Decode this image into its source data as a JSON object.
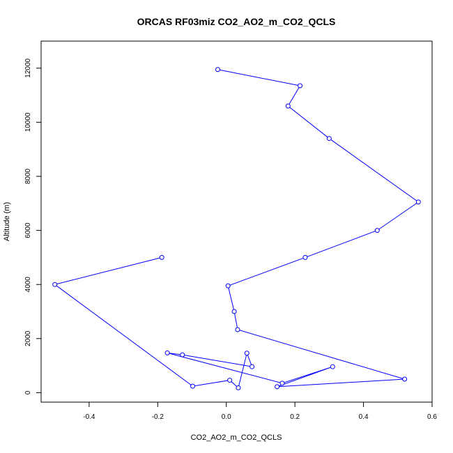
{
  "chart_data": {
    "type": "line",
    "title": "ORCAS RF03miz CO2_AO2_m_CO2_QCLS",
    "xlabel": "CO2_AO2_m_CO2_QCLS",
    "ylabel": "Altitude (m)",
    "xlim": [
      -0.54,
      0.6
    ],
    "ylim": [
      -350,
      13000
    ],
    "xticks": [
      -0.4,
      -0.2,
      0.0,
      0.2,
      0.4,
      0.6
    ],
    "xtick_labels": [
      "-0.4",
      "-0.2",
      "0.0",
      "0.2",
      "0.4",
      "0.6"
    ],
    "yticks": [
      0,
      2000,
      4000,
      6000,
      8000,
      10000,
      12000
    ],
    "ytick_labels": [
      "0",
      "2000",
      "4000",
      "6000",
      "8000",
      "10000",
      "12000"
    ],
    "grid": false,
    "series": [
      {
        "color": "#0000ff",
        "marker": "open-circle",
        "x": [
          -0.025,
          0.215,
          0.18,
          0.3,
          0.56,
          0.44,
          0.23,
          0.005,
          0.023,
          0.033,
          0.52,
          0.148,
          0.31,
          0.163,
          -0.172,
          -0.128,
          0.075,
          0.06,
          0.035,
          0.01,
          -0.098,
          -0.5,
          -0.188
        ],
        "y": [
          11950,
          11350,
          10600,
          9400,
          7050,
          6000,
          5000,
          3950,
          3000,
          2330,
          500,
          220,
          960,
          350,
          1470,
          1400,
          960,
          1460,
          180,
          460,
          240,
          4000,
          5000
        ]
      }
    ]
  }
}
